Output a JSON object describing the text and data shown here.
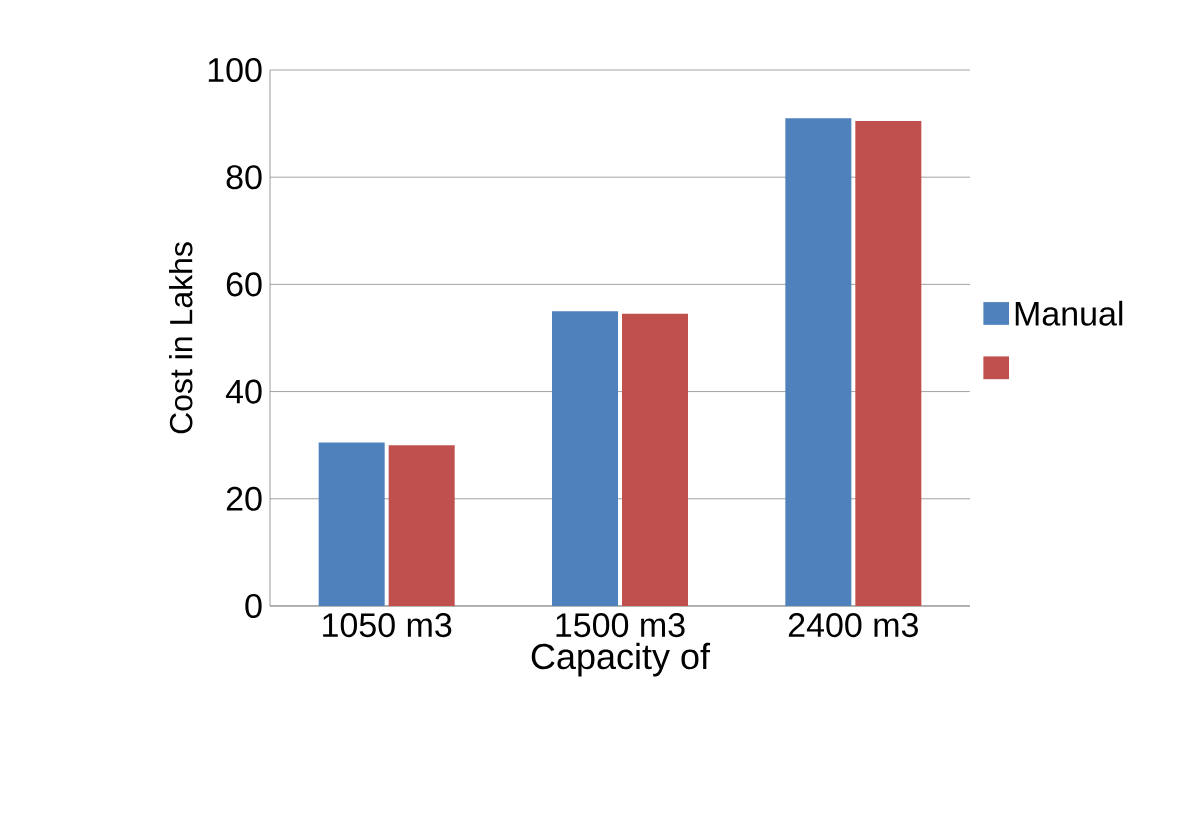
{
  "chart_data": {
    "type": "bar",
    "xlabel": "Capacity of",
    "ylabel": "Cost in Lakhs",
    "categories": [
      "1050 m3",
      "1500 m3",
      "2400 m3"
    ],
    "series": [
      {
        "name": "Manual",
        "color": "#4f81bd",
        "values": [
          30.5,
          55,
          91
        ]
      },
      {
        "color": "#c0504d",
        "values": [
          30,
          54.5,
          90.5
        ]
      }
    ],
    "ylim": [
      0,
      100
    ],
    "yticks": [
      0,
      20,
      40,
      60,
      80,
      100
    ],
    "grid": "y",
    "legend": "right"
  }
}
